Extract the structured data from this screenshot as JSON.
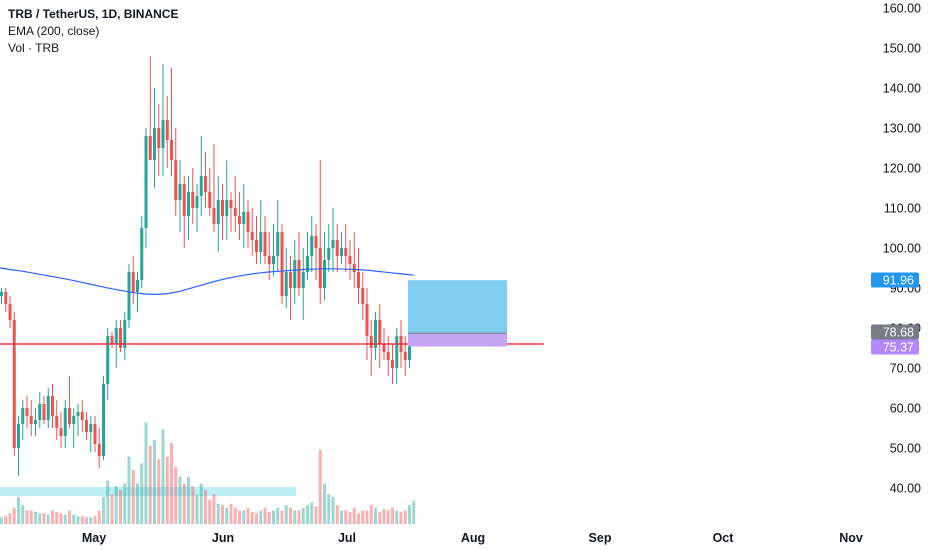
{
  "legend": {
    "symbol": "TRB / TetherUS, 1D, BINANCE",
    "ema": "EMA (200, close)",
    "vol": "Vol · TRB"
  },
  "colors": {
    "up": "#26a69a",
    "down": "#ef5350",
    "ema": "#2962ff",
    "hline": "#f23645",
    "profit_zone": "#81cdf0",
    "loss_zone": "#c5a6f5",
    "badge_target": "#2196f3",
    "badge_last": "#787b86",
    "badge_stop": "#b388ff",
    "vol_zone": "#b2ebf2"
  },
  "chart_data": {
    "type": "candlestick",
    "ylim": [
      33.0,
      161.0
    ],
    "y_ticks": [
      "160.00",
      "150.00",
      "140.00",
      "130.00",
      "120.00",
      "110.00",
      "100.00",
      "90.00",
      "80.00",
      "70.00",
      "60.00",
      "50.00",
      "40.00"
    ],
    "x_ticks": [
      "May",
      "Jun",
      "Jul",
      "Aug",
      "Sep",
      "Oct",
      "Nov"
    ],
    "horizontal_line": 76.0,
    "position": {
      "entry": 78.68,
      "target": 91.96,
      "stop": 75.37
    },
    "price_labels": [
      "91.96",
      "78.68",
      "75.37"
    ],
    "ema_200": [
      95.0,
      94.6,
      94.2,
      93.7,
      93.2,
      92.7,
      92.2,
      91.6,
      91.0,
      90.4,
      89.8,
      89.3,
      88.8,
      88.5,
      88.4,
      88.6,
      89.1,
      89.9,
      90.7,
      91.5,
      92.2,
      92.8,
      93.3,
      93.7,
      94.0,
      94.2,
      94.4,
      94.6,
      94.7,
      94.8,
      94.8,
      94.7,
      94.6,
      94.4,
      94.1,
      93.8,
      93.5,
      93.2
    ],
    "ohlc": [
      [
        88,
        90,
        86,
        89
      ],
      [
        89,
        90,
        84,
        86
      ],
      [
        86,
        88,
        80,
        82
      ],
      [
        82,
        84,
        48,
        50
      ],
      [
        50,
        58,
        43,
        56
      ],
      [
        56,
        62,
        52,
        60
      ],
      [
        60,
        63,
        55,
        58
      ],
      [
        58,
        62,
        53,
        56
      ],
      [
        56,
        60,
        53,
        57
      ],
      [
        57,
        64,
        55,
        61
      ],
      [
        61,
        63,
        56,
        57
      ],
      [
        57,
        65,
        55,
        63
      ],
      [
        63,
        66,
        55,
        58
      ],
      [
        58,
        62,
        52,
        55
      ],
      [
        55,
        59,
        50,
        53
      ],
      [
        53,
        62,
        50,
        60
      ],
      [
        60,
        68,
        55,
        56
      ],
      [
        56,
        60,
        50,
        58
      ],
      [
        58,
        61,
        53,
        59
      ],
      [
        59,
        62,
        54,
        57
      ],
      [
        57,
        59,
        52,
        54
      ],
      [
        54,
        58,
        49,
        56
      ],
      [
        56,
        58,
        49,
        51
      ],
      [
        51,
        55,
        45,
        48
      ],
      [
        48,
        68,
        47,
        66
      ],
      [
        66,
        80,
        62,
        78
      ],
      [
        78,
        79,
        75,
        76
      ],
      [
        76,
        82,
        70,
        80
      ],
      [
        80,
        82,
        74,
        75
      ],
      [
        75,
        84,
        72,
        82
      ],
      [
        82,
        96,
        80,
        94
      ],
      [
        94,
        98,
        86,
        89
      ],
      [
        89,
        94,
        84,
        92
      ],
      [
        92,
        108,
        90,
        105
      ],
      [
        105,
        130,
        100,
        128
      ],
      [
        128,
        148,
        122,
        122
      ],
      [
        122,
        140,
        115,
        130
      ],
      [
        130,
        136,
        118,
        125
      ],
      [
        125,
        146,
        118,
        132
      ],
      [
        132,
        138,
        120,
        127
      ],
      [
        127,
        145,
        118,
        122
      ],
      [
        122,
        130,
        108,
        112
      ],
      [
        112,
        122,
        104,
        116
      ],
      [
        116,
        118,
        100,
        108
      ],
      [
        108,
        118,
        102,
        114
      ],
      [
        114,
        120,
        106,
        110
      ],
      [
        110,
        116,
        104,
        113
      ],
      [
        113,
        128,
        108,
        118
      ],
      [
        118,
        124,
        110,
        114
      ],
      [
        114,
        120,
        108,
        110
      ],
      [
        110,
        126,
        104,
        106
      ],
      [
        106,
        118,
        99,
        112
      ],
      [
        112,
        116,
        102,
        108
      ],
      [
        108,
        122,
        102,
        112
      ],
      [
        112,
        114,
        104,
        110
      ],
      [
        110,
        118,
        104,
        108
      ],
      [
        108,
        114,
        102,
        106
      ],
      [
        106,
        116,
        100,
        109
      ],
      [
        109,
        112,
        100,
        104
      ],
      [
        104,
        110,
        98,
        102
      ],
      [
        102,
        108,
        96,
        99
      ],
      [
        99,
        112,
        96,
        104
      ],
      [
        104,
        108,
        96,
        98
      ],
      [
        98,
        104,
        92,
        96
      ],
      [
        96,
        106,
        93,
        98
      ],
      [
        98,
        112,
        94,
        104
      ],
      [
        104,
        106,
        86,
        88
      ],
      [
        88,
        100,
        85,
        94
      ],
      [
        94,
        98,
        82,
        90
      ],
      [
        90,
        102,
        86,
        97
      ],
      [
        97,
        104,
        88,
        90
      ],
      [
        90,
        100,
        82,
        94
      ],
      [
        94,
        104,
        92,
        98
      ],
      [
        98,
        108,
        94,
        103
      ],
      [
        103,
        106,
        92,
        100
      ],
      [
        100,
        122,
        86,
        90
      ],
      [
        90,
        104,
        87,
        97
      ],
      [
        97,
        106,
        94,
        100
      ],
      [
        100,
        110,
        94,
        102
      ],
      [
        102,
        106,
        94,
        98
      ],
      [
        98,
        104,
        96,
        100
      ],
      [
        100,
        106,
        94,
        98
      ],
      [
        98,
        102,
        92,
        96
      ],
      [
        96,
        104,
        90,
        94
      ],
      [
        94,
        100,
        86,
        90
      ],
      [
        90,
        94,
        82,
        86
      ],
      [
        86,
        90,
        72,
        78
      ],
      [
        78,
        82,
        68,
        75
      ],
      [
        75,
        84,
        72,
        82
      ],
      [
        82,
        86,
        70,
        76
      ],
      [
        76,
        80,
        72,
        74
      ],
      [
        74,
        78,
        68,
        72
      ],
      [
        72,
        76,
        66,
        70
      ],
      [
        70,
        80,
        66,
        78
      ],
      [
        78,
        82,
        70,
        74
      ],
      [
        74,
        78,
        68,
        72
      ],
      [
        72,
        80,
        70,
        78
      ],
      [
        78,
        82,
        76,
        80
      ]
    ],
    "volume_fraction": [
      0.05,
      0.06,
      0.08,
      0.12,
      0.2,
      0.14,
      0.1,
      0.1,
      0.09,
      0.08,
      0.08,
      0.07,
      0.1,
      0.09,
      0.08,
      0.07,
      0.1,
      0.07,
      0.06,
      0.06,
      0.05,
      0.05,
      0.06,
      0.1,
      0.2,
      0.32,
      0.22,
      0.28,
      0.25,
      0.3,
      0.5,
      0.4,
      0.3,
      0.45,
      0.75,
      0.58,
      0.62,
      0.48,
      0.7,
      0.5,
      0.6,
      0.42,
      0.35,
      0.3,
      0.35,
      0.28,
      0.22,
      0.3,
      0.25,
      0.18,
      0.22,
      0.15,
      0.14,
      0.12,
      0.15,
      0.12,
      0.1,
      0.1,
      0.12,
      0.09,
      0.08,
      0.1,
      0.12,
      0.09,
      0.1,
      0.12,
      0.1,
      0.14,
      0.12,
      0.1,
      0.1,
      0.12,
      0.14,
      0.16,
      0.13,
      0.55,
      0.3,
      0.22,
      0.2,
      0.14,
      0.1,
      0.1,
      0.09,
      0.12,
      0.08,
      0.1,
      0.1,
      0.14,
      0.12,
      0.09,
      0.11,
      0.1,
      0.12,
      0.1,
      0.09,
      0.1,
      0.14,
      0.17
    ]
  }
}
